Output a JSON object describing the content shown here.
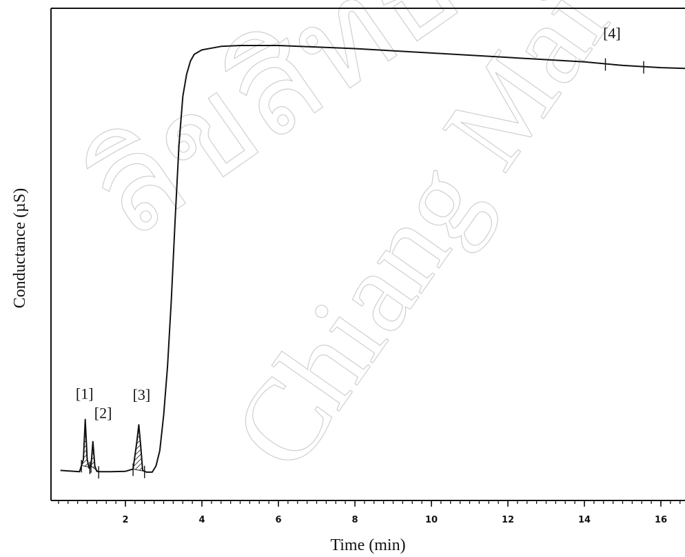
{
  "chart_data": {
    "type": "line",
    "xlabel": "Time (min)",
    "ylabel": "Conductance (µS)",
    "xlim": [
      0,
      16.7
    ],
    "ylim": [
      0,
      100
    ],
    "x_ticks": [
      2,
      4,
      6,
      8,
      10,
      12,
      14,
      16
    ],
    "x_tick_labels": [
      "2",
      "4",
      "6",
      "8",
      "10",
      "12",
      "14",
      "16"
    ],
    "y_ticks_labeled": false,
    "grid": false,
    "series": [
      {
        "x": [
          0.3,
          0.8,
          0.9,
          0.95,
          1.0,
          1.05,
          1.1,
          1.15,
          1.2,
          1.25,
          1.3,
          1.4,
          1.6,
          2.0,
          2.2,
          2.3,
          2.35,
          2.4,
          2.45,
          2.55,
          2.7,
          2.8,
          2.9,
          3.0,
          3.1,
          3.2,
          3.3,
          3.4,
          3.5,
          3.6,
          3.7,
          3.8,
          4.0,
          4.5,
          5.0,
          6.0,
          8.0,
          10.0,
          12.0,
          14.0,
          15.0,
          16.0,
          16.7
        ],
        "y": [
          1.5,
          1.2,
          4,
          13,
          4,
          2,
          2.5,
          8,
          2.5,
          1.3,
          1.2,
          1.2,
          1.2,
          1.3,
          1.8,
          8,
          11.8,
          7,
          1.5,
          1.1,
          1.1,
          2.5,
          6,
          14,
          25,
          40,
          58,
          75,
          86,
          91,
          94,
          95.5,
          96.5,
          97.3,
          97.5,
          97.5,
          96.8,
          95.8,
          94.8,
          93.8,
          93,
          92.5,
          92.3
        ]
      }
    ],
    "annotations": [
      {
        "text": "[1]",
        "x": 0.95,
        "y": 13
      },
      {
        "text": "[2]",
        "x": 1.2,
        "y": 8
      },
      {
        "text": "[3]",
        "x": 2.35,
        "y": 11.8
      },
      {
        "text": "[4]",
        "x": 14.9,
        "y": 93.5
      }
    ],
    "hatched_peaks": [
      {
        "label": "[1]",
        "x_start": 0.85,
        "x_end": 1.07
      },
      {
        "label": "[2]",
        "x_start": 1.1,
        "x_end": 1.3
      },
      {
        "label": "[3]",
        "x_start": 2.2,
        "x_end": 2.5
      },
      {
        "label": "[4]",
        "x_start": 14.55,
        "x_end": 15.55
      }
    ]
  }
}
